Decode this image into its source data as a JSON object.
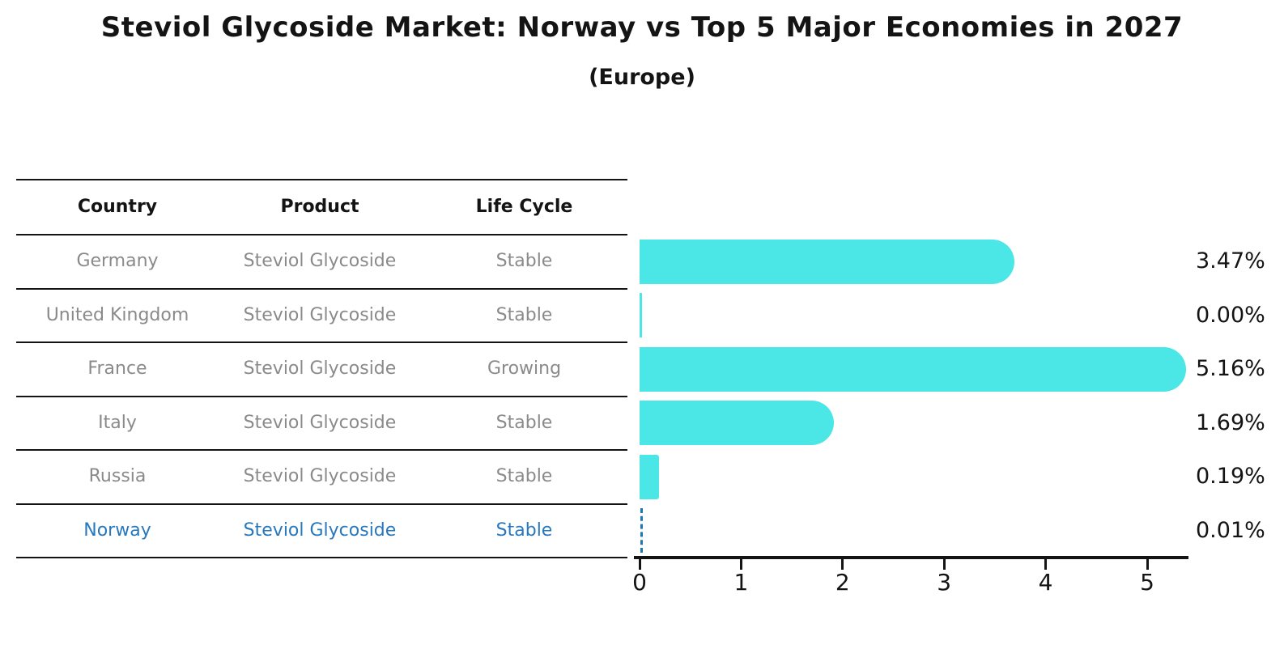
{
  "title": "Steviol Glycoside Market: Norway vs Top 5 Major Economies in 2027",
  "subtitle": "(Europe)",
  "table": {
    "headers": [
      "Country",
      "Product",
      "Life Cycle"
    ],
    "rows": [
      {
        "country": "Germany",
        "product": "Steviol Glycoside",
        "life_cycle": "Stable",
        "highlight": false
      },
      {
        "country": "United Kingdom",
        "product": "Steviol Glycoside",
        "life_cycle": "Stable",
        "highlight": false
      },
      {
        "country": "France",
        "product": "Steviol Glycoside",
        "life_cycle": "Growing",
        "highlight": false
      },
      {
        "country": "Italy",
        "product": "Steviol Glycoside",
        "life_cycle": "Stable",
        "highlight": false
      },
      {
        "country": "Russia",
        "product": "Steviol Glycoside",
        "life_cycle": "Stable",
        "highlight": false
      },
      {
        "country": "Norway",
        "product": "Steviol Glycoside",
        "life_cycle": "Stable",
        "highlight": true
      }
    ]
  },
  "chart_data": {
    "type": "bar",
    "orientation": "horizontal",
    "title": "Steviol Glycoside Market: Norway vs Top 5 Major Economies in 2027",
    "subtitle": "(Europe)",
    "categories": [
      "Germany",
      "United Kingdom",
      "France",
      "Italy",
      "Russia",
      "Norway"
    ],
    "values": [
      3.47,
      0.0,
      5.16,
      1.69,
      0.19,
      0.01
    ],
    "value_labels": [
      "3.47%",
      "0.00%",
      "5.16%",
      "1.69%",
      "0.19%",
      "0.01%"
    ],
    "xlabel": "",
    "ylabel": "",
    "xlim": [
      0,
      5.4
    ],
    "x_ticks": [
      "0",
      "1",
      "2",
      "3",
      "4",
      "5"
    ],
    "grid": false,
    "legend": false,
    "bar_color": "#4be6e6",
    "highlight_category": "Norway",
    "highlight_marker": "dashed-line",
    "highlight_color": "#1f77b4"
  },
  "colors": {
    "background": "#ffffff",
    "bar": "#4be6e6",
    "highlight_blue": "#2878be",
    "marker_blue": "#1f77b4",
    "text_dark": "#141414",
    "text_gray": "#8a8a8a",
    "line": "#141414"
  }
}
